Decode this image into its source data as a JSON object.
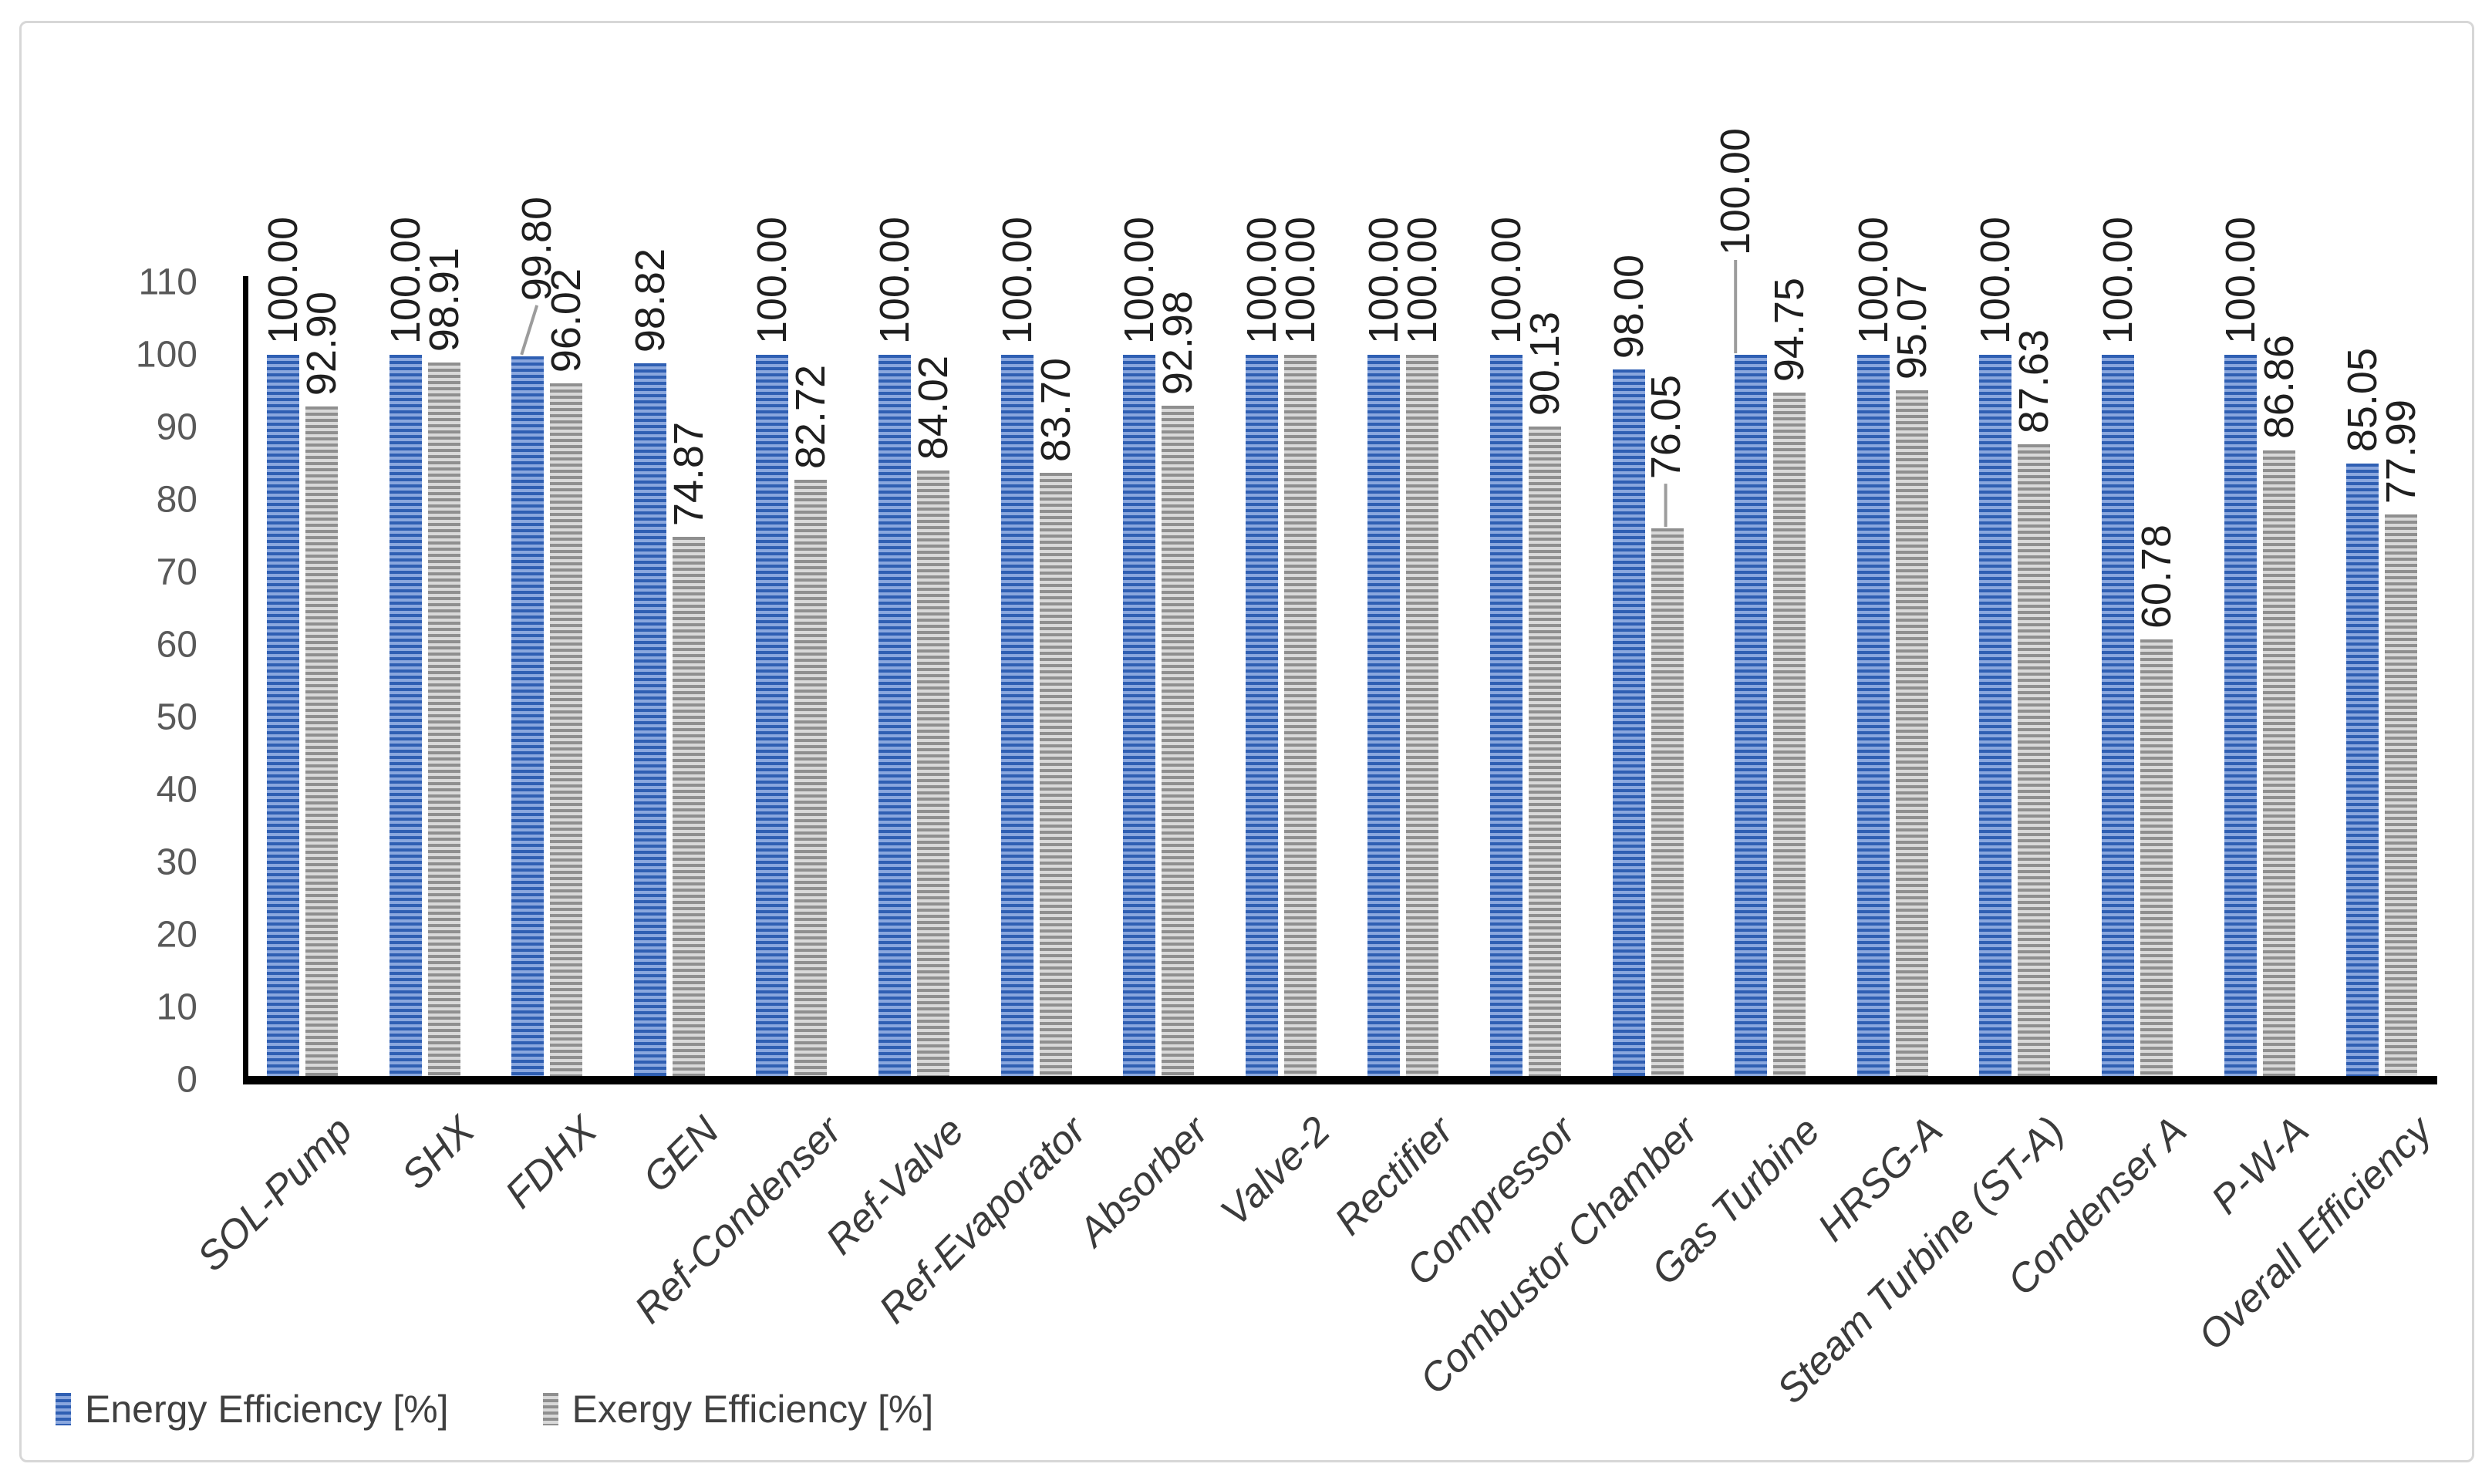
{
  "chart_data": {
    "type": "bar",
    "title": "",
    "categories": [
      "SOL-Pump",
      "SHX",
      "FDHX",
      "GEN",
      "Ref-Condenser",
      "Ref-Valve",
      "Ref-Evaporator",
      "Absorber",
      "Valve-2",
      "Rectifier",
      "Compressor",
      "Combustor Chamber",
      "Gas Turbine",
      "HRSG-A",
      "Steam Turbine (ST-A)",
      "Condenser A",
      "P-W-A",
      "Overall Efficiency"
    ],
    "series": [
      {
        "name": "Energy Efficiency [%]",
        "color": "#4472c4",
        "stripe_dark": "#2f5fb3",
        "stripe_light": "#8aa7de",
        "pattern": "horizontal-stripes",
        "values": [
          100.0,
          100.0,
          99.8,
          98.82,
          100.0,
          100.0,
          100.0,
          100.0,
          100.0,
          100.0,
          100.0,
          98.0,
          100.0,
          100.0,
          100.0,
          100.0,
          100.0,
          85.05
        ]
      },
      {
        "name": "Exergy Efficiency [%]",
        "color": "#a6a6a6",
        "stripe_dark": "#8f8f8f",
        "stripe_light": "#d9d9d9",
        "pattern": "horizontal-stripes",
        "values": [
          92.9,
          98.91,
          96.02,
          74.87,
          82.72,
          84.02,
          83.7,
          92.98,
          100.0,
          100.0,
          90.13,
          76.05,
          94.75,
          95.07,
          87.63,
          60.78,
          86.86,
          77.99
        ]
      }
    ],
    "ylim": [
      0,
      110
    ],
    "yticks": [
      0,
      10,
      20,
      30,
      40,
      50,
      60,
      70,
      80,
      90,
      100,
      110
    ],
    "gridlines": false,
    "data_labels": {
      "format": "0.00",
      "rotation_deg": 90
    },
    "x_label_rotation_deg": 45,
    "legend_position": "bottom-left",
    "axis_color": "#000000",
    "ytick_color": "#595959",
    "xlabel_color": "#3b3b3b",
    "data_label_color": "#1f1f1f",
    "leader_line_color": "#9c9c9c",
    "label_adjustments": [
      {
        "series": 0,
        "category": "FDHX",
        "raise": 58,
        "dx": 12,
        "dx_end": -8,
        "leader": true
      },
      {
        "series": 1,
        "category": "Combustor Chamber",
        "raise": 50,
        "dx": -2,
        "leader": true
      },
      {
        "series": 0,
        "category": "Gas Turbine",
        "raise": 115,
        "dx": -20,
        "leader": true
      }
    ]
  }
}
